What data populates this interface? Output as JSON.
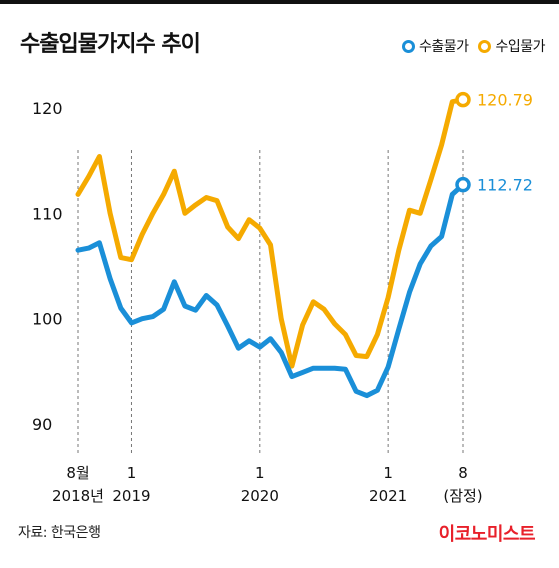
{
  "title": "수출입물가지수 추이",
  "source": "자료: 한국은행",
  "logo": "이코노미스트",
  "colors": {
    "export": "#1a8fd8",
    "import": "#f5aa00"
  },
  "chart_data": {
    "type": "line",
    "title": "수출입물가지수 추이",
    "xlabel": "",
    "ylabel": "",
    "ylim": [
      88,
      124
    ],
    "yticks": [
      90,
      100,
      110,
      120
    ],
    "grid": false,
    "legend_placement": "top-right",
    "x_start": "2018-08",
    "x_end": "2021-08",
    "xticks": [
      {
        "month": "2018-08",
        "line1": "8월",
        "line2": "2018년"
      },
      {
        "month": "2019-01",
        "line1": "1",
        "line2": "2019"
      },
      {
        "month": "2020-01",
        "line1": "1",
        "line2": "2020"
      },
      {
        "month": "2021-01",
        "line1": "1",
        "line2": "2021"
      },
      {
        "month": "2021-08",
        "line1": "8",
        "line2": "(잠정)"
      }
    ],
    "series": [
      {
        "name": "수출물가",
        "key": "export",
        "end_label": "112.72",
        "values": [
          106.5,
          106.7,
          107.2,
          103.8,
          101.0,
          99.6,
          100.0,
          100.2,
          100.9,
          103.5,
          101.2,
          100.8,
          102.2,
          101.3,
          99.3,
          97.2,
          97.9,
          97.3,
          98.1,
          96.8,
          94.5,
          94.9,
          95.3,
          95.3,
          95.3,
          95.2,
          93.1,
          92.7,
          93.2,
          95.4,
          99.0,
          102.5,
          105.2,
          106.9,
          107.8,
          111.8,
          112.72
        ]
      },
      {
        "name": "수입물가",
        "key": "import",
        "end_label": "120.79",
        "values": [
          111.8,
          113.5,
          115.4,
          110.0,
          105.8,
          105.6,
          108.0,
          110.0,
          111.8,
          114.0,
          110.0,
          110.8,
          111.5,
          111.2,
          108.7,
          107.6,
          109.4,
          108.6,
          107.0,
          100.0,
          95.5,
          99.4,
          101.6,
          100.9,
          99.5,
          98.5,
          96.5,
          96.4,
          98.5,
          102.0,
          106.5,
          110.3,
          110.0,
          113.2,
          116.5,
          120.6,
          120.79
        ]
      }
    ]
  }
}
